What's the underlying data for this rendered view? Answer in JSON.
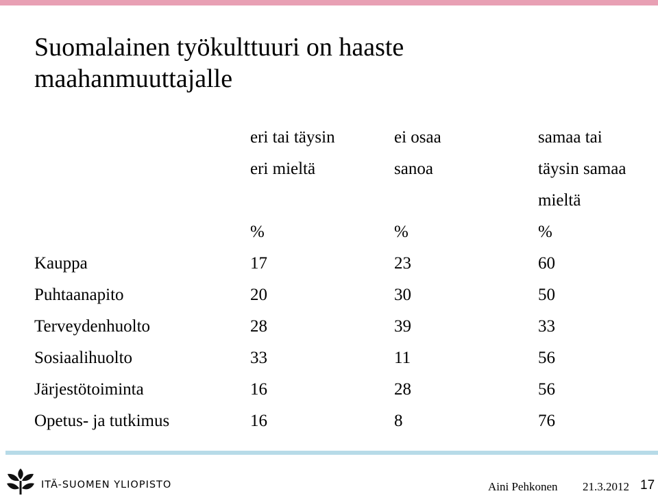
{
  "title_lines": [
    "Suomalainen työkulttuuri on haaste",
    "maahanmuuttajalle"
  ],
  "table": {
    "header_rows": [
      [
        "",
        "eri tai täysin",
        "ei osaa",
        "samaa tai"
      ],
      [
        "",
        "eri mieltä",
        "sanoa",
        "täysin samaa"
      ],
      [
        "",
        "",
        "",
        "mieltä"
      ],
      [
        "",
        "%",
        "%",
        "%"
      ]
    ],
    "rows": [
      {
        "label": "Kauppa",
        "values": [
          "17",
          "23",
          "60"
        ]
      },
      {
        "label": "Puhtaanapito",
        "values": [
          "20",
          "30",
          "50"
        ]
      },
      {
        "label": "Terveydenhuolto",
        "values": [
          "28",
          "39",
          "33"
        ]
      },
      {
        "label": "Sosiaalihuolto",
        "values": [
          "33",
          "11",
          "56"
        ]
      },
      {
        "label": "Järjestötoiminta",
        "values": [
          "16",
          "28",
          "56"
        ]
      },
      {
        "label": "Opetus- ja tutkimus",
        "values": [
          "16",
          "8",
          "76"
        ]
      }
    ]
  },
  "footer": {
    "university": "ITÄ-SUOMEN YLIOPISTO",
    "author": "Aini Pehkonen",
    "date": "21.3.2012",
    "page_number": "17"
  },
  "colors": {
    "top_bar": "#e8a0b4",
    "bottom_bar": "#b7dbe8",
    "logo": "#111111"
  }
}
